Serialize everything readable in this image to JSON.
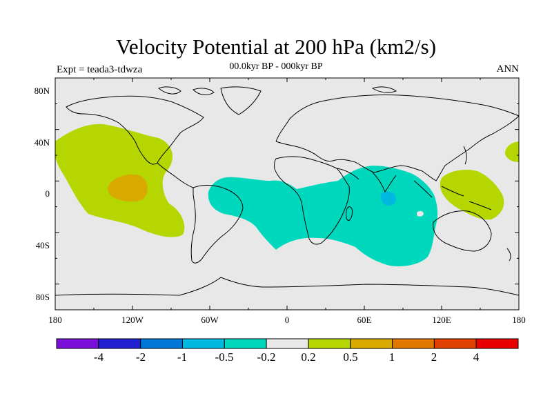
{
  "title": "Velocity Potential at 200 hPa (km2/s)",
  "subtitle": "00.0kyr BP - 000kyr BP",
  "left_label": "Expt = teada3-tdwza",
  "right_label": "ANN",
  "lat_ticks": [
    "80N",
    "40N",
    "0",
    "40S",
    "80S"
  ],
  "lon_ticks": [
    "180",
    "120W",
    "60W",
    "0",
    "60E",
    "120E",
    "180"
  ],
  "colorbar": {
    "colors": [
      "#7a10d8",
      "#2020d0",
      "#0077d6",
      "#00b8e0",
      "#00d8be",
      "#e8e8e8",
      "#b5d600",
      "#d8aa00",
      "#e07800",
      "#e04000",
      "#e80000"
    ],
    "labels": [
      "-4",
      "-2",
      "-1",
      "-0.5",
      "-0.2",
      "0.2",
      "0.5",
      "1",
      "2",
      "4"
    ]
  },
  "colors": {
    "background": "#e8e8e8",
    "positive_low": "#b5d600",
    "positive_mid": "#d8aa00",
    "negative_low": "#00d8be",
    "negative_mid": "#00b8e0"
  }
}
